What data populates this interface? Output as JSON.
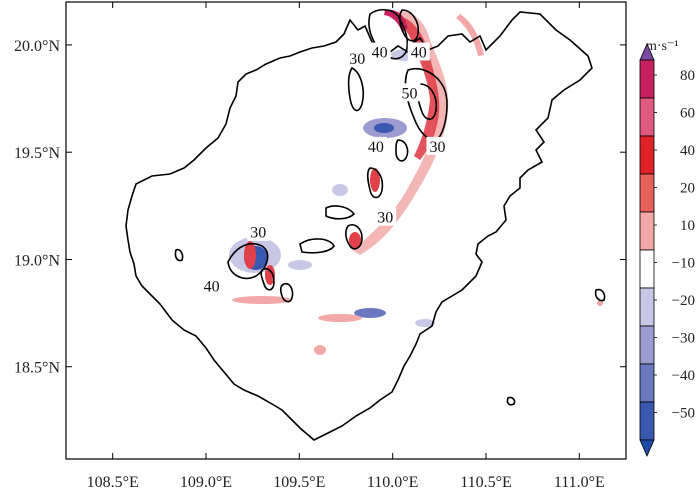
{
  "map": {
    "x_ticks": [
      {
        "label": "108.5°E",
        "lon": 108.5
      },
      {
        "label": "109.0°E",
        "lon": 109.0
      },
      {
        "label": "109.5°E",
        "lon": 109.5
      },
      {
        "label": "110.0°E",
        "lon": 110.0
      },
      {
        "label": "110.5°E",
        "lon": 110.5
      },
      {
        "label": "111.0°E",
        "lon": 111.0
      }
    ],
    "y_ticks": [
      {
        "label": "20.0°N",
        "lat": 20.0
      },
      {
        "label": "19.5°N",
        "lat": 19.5
      },
      {
        "label": "19.0°N",
        "lat": 19.0
      },
      {
        "label": "18.5°N",
        "lat": 18.5
      }
    ],
    "lon_range": [
      108.25,
      111.25
    ],
    "lat_range": [
      18.07,
      20.2
    ],
    "contour_labels": [
      {
        "text": "30",
        "lon": 109.81,
        "lat": 19.93
      },
      {
        "text": "40",
        "lon": 109.93,
        "lat": 19.96
      },
      {
        "text": "40",
        "lon": 110.14,
        "lat": 19.96
      },
      {
        "text": "50",
        "lon": 110.09,
        "lat": 19.77
      },
      {
        "text": "40",
        "lon": 109.91,
        "lat": 19.52
      },
      {
        "text": "30",
        "lon": 110.24,
        "lat": 19.52
      },
      {
        "text": "30",
        "lon": 109.96,
        "lat": 19.19
      },
      {
        "text": "30",
        "lon": 109.28,
        "lat": 19.12
      },
      {
        "text": "40",
        "lon": 109.03,
        "lat": 18.87
      }
    ]
  },
  "colorbar": {
    "unit": "m·s⁻¹",
    "labels": [
      "80",
      "60",
      "40",
      "20",
      "10",
      "−10",
      "−20",
      "−30",
      "−40",
      "−50"
    ],
    "colors": [
      "#7b4aa0",
      "#c8205f",
      "#e05a80",
      "#e02128",
      "#e8605a",
      "#f2a8a8",
      "#ffffff",
      "#c8c8e6",
      "#9c9cd0",
      "#6a78c0",
      "#3a58b0",
      "#1f4aa8"
    ]
  }
}
